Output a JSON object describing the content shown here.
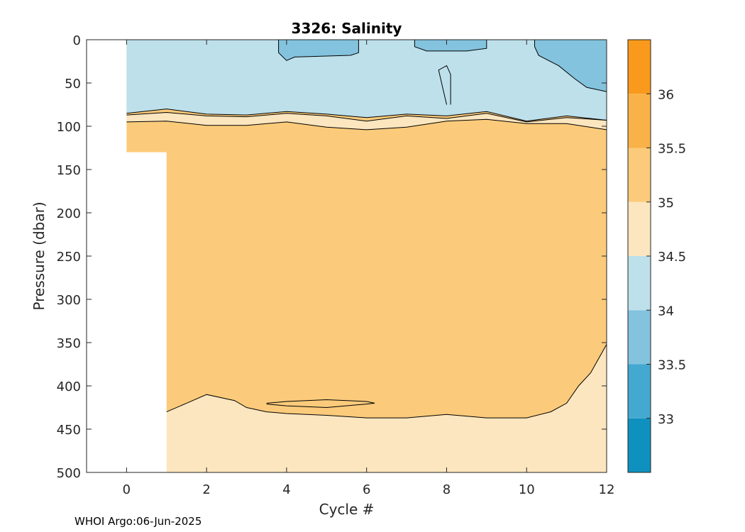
{
  "chart_data": {
    "type": "contour",
    "title": "3326:  Salinity",
    "xlabel": "Cycle #",
    "ylabel": "Pressure (dbar)",
    "xlim": [
      -1,
      12
    ],
    "ylim": [
      500,
      0
    ],
    "xticks": [
      0,
      2,
      4,
      6,
      8,
      10,
      12
    ],
    "yticks": [
      0,
      50,
      100,
      150,
      200,
      250,
      300,
      350,
      400,
      450,
      500
    ],
    "data_extent": {
      "cycles": [
        0,
        12
      ],
      "pressure": [
        0,
        500
      ]
    },
    "no_data_region": {
      "cycles": [
        0,
        1
      ],
      "pressure_below": 130
    },
    "colorbar": {
      "levels": [
        32.5,
        33,
        33.5,
        34,
        34.5,
        35,
        35.5,
        36,
        36.5
      ],
      "tick_labels": [
        "33",
        "33.5",
        "34",
        "34.5",
        "35",
        "35.5",
        "36"
      ],
      "colors": [
        "#0f91c0",
        "#44a9d0",
        "#83c3de",
        "#bde0eb",
        "#fce6bf",
        "#fbcb7b",
        "#f9b248",
        "#f99a1c"
      ]
    },
    "layers": [
      {
        "salinity_range": [
          34,
          34.5
        ],
        "description_hint": "surface layer",
        "depth_range": [
          0,
          90
        ]
      },
      {
        "salinity_range": [
          34.5,
          35
        ],
        "depth_range": [
          90,
          100
        ]
      },
      {
        "salinity_range": [
          35,
          35.5
        ],
        "depth_range": [
          100,
          430
        ]
      },
      {
        "salinity_range": [
          34.5,
          35
        ],
        "depth_range": [
          430,
          500
        ]
      }
    ],
    "grid": false
  },
  "footer": {
    "text": "WHOI Argo:06-Jun-2025"
  }
}
